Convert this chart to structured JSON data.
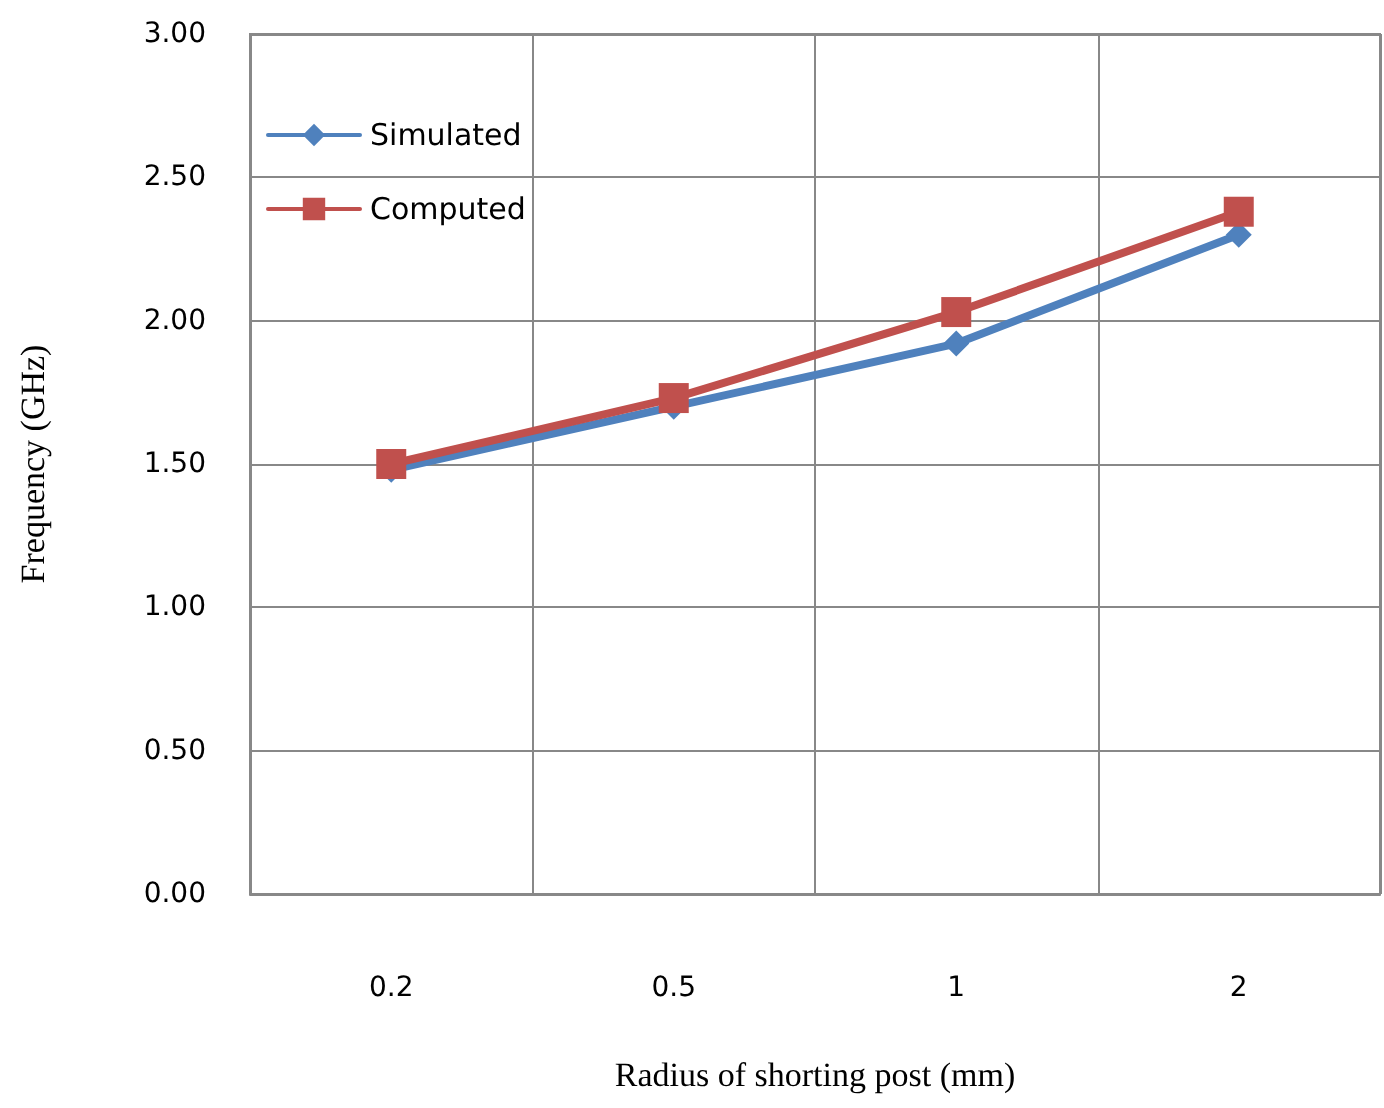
{
  "chart_data": {
    "type": "line",
    "xlabel": "Radius of shorting post (mm)",
    "ylabel": "Frequency (GHz)",
    "categories": [
      "0.2",
      "0.5",
      "1",
      "2"
    ],
    "series": [
      {
        "name": "Simulated",
        "color": "#4f81bd",
        "values": [
          1.48,
          1.7,
          1.92,
          2.3
        ],
        "marker": "diamond"
      },
      {
        "name": "Computed",
        "color": "#c0504d",
        "values": [
          1.5,
          1.73,
          2.03,
          2.38
        ],
        "marker": "square"
      }
    ],
    "ylim": [
      0,
      3
    ],
    "yticks": [
      {
        "value": 0,
        "label": "0.00"
      },
      {
        "value": 0.5,
        "label": "0.50"
      },
      {
        "value": 1,
        "label": "1.00"
      },
      {
        "value": 1.5,
        "label": "1.50"
      },
      {
        "value": 2,
        "label": "2.00"
      },
      {
        "value": 2.5,
        "label": "2.50"
      },
      {
        "value": 3,
        "label": "3.00"
      }
    ],
    "grid": true,
    "legend": "top left",
    "line_style": "solid"
  }
}
